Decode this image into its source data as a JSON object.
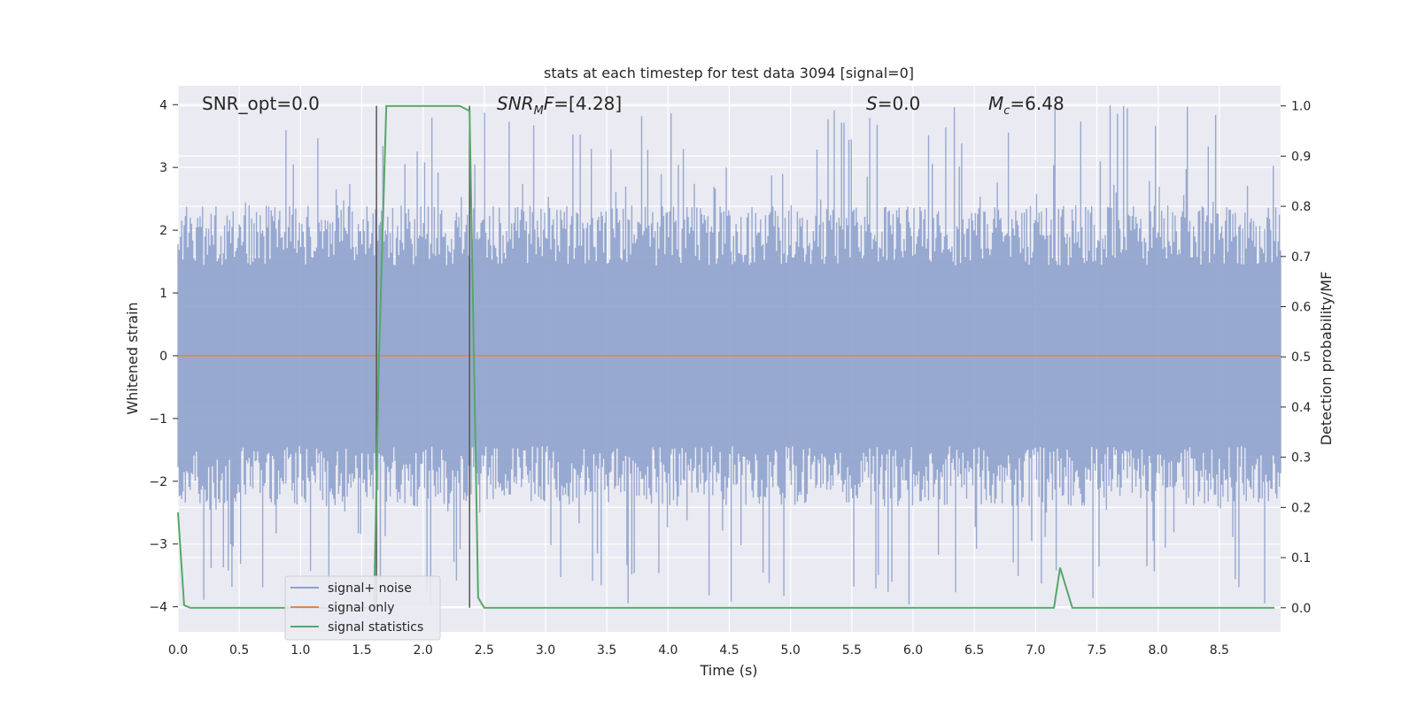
{
  "chart_data": {
    "type": "line",
    "title": "stats at each timestep for test data 3094 [signal=0]",
    "xlabel": "Time (s)",
    "ylabel_left": "Whitened strain",
    "ylabel_right": "Detection probability/MF",
    "xlim": [
      0.0,
      9.0
    ],
    "ylim_left": [
      -4.4,
      4.3
    ],
    "ylim_right": [
      -0.048,
      1.04
    ],
    "grid": true,
    "x_ticks": [
      "0.0",
      "0.5",
      "1.0",
      "1.5",
      "2.0",
      "2.5",
      "3.0",
      "3.5",
      "4.0",
      "4.5",
      "5.0",
      "5.5",
      "6.0",
      "6.5",
      "7.0",
      "7.5",
      "8.0",
      "8.5"
    ],
    "y_left_ticks": [
      "4",
      "3",
      "2",
      "1",
      "0",
      "−1",
      "−2",
      "−3",
      "−4"
    ],
    "y_right_ticks": [
      "1.0",
      "0.9",
      "0.8",
      "0.7",
      "0.6",
      "0.5",
      "0.4",
      "0.3",
      "0.2",
      "0.1",
      "0.0"
    ],
    "annotations": {
      "snr_opt": "SNR_opt=0.0",
      "snr_mf_main": "SNR",
      "snr_mf_sub": "M",
      "snr_mf_rest": "F=[4.28]",
      "s_italic": "S",
      "s_rest": "=0.0",
      "mc_main": "M",
      "mc_sub": "c",
      "mc_rest": "=6.48"
    },
    "vertical_markers_s": [
      1.62,
      2.38
    ],
    "series": [
      {
        "name": "signal+ noise",
        "color": "#8ea2cc",
        "axis": "left",
        "description_band": {
          "x_range": [
            0.0,
            9.0
          ],
          "typical_amplitude": 1.6,
          "peak_amplitude": 4.0
        }
      },
      {
        "name": "signal only",
        "color": "#dd8452",
        "axis": "left",
        "x": [
          0.0,
          9.0
        ],
        "y": [
          0.0,
          0.0
        ]
      },
      {
        "name": "signal statistics",
        "color": "#55a868",
        "axis": "right",
        "x": [
          0.0,
          0.05,
          0.1,
          1.55,
          1.6,
          1.64,
          1.7,
          2.3,
          2.38,
          2.45,
          2.5,
          7.1,
          7.15,
          7.2,
          7.25,
          7.3,
          8.95
        ],
        "y": [
          0.19,
          0.005,
          0.0,
          0.0,
          0.0,
          0.5,
          1.0,
          1.0,
          0.99,
          0.02,
          0.0,
          0.0,
          0.0,
          0.08,
          0.04,
          0.0,
          0.0
        ]
      }
    ],
    "legend": {
      "position": "lower-left",
      "entries": [
        "signal+ noise",
        "signal only",
        "signal statistics"
      ]
    },
    "colors": {
      "plot_bg": "#eaeaf2",
      "grid": "#ffffff",
      "noise": "#8ea2cc",
      "signal": "#dd8452",
      "stats": "#55a868",
      "marker": "#555555"
    }
  }
}
